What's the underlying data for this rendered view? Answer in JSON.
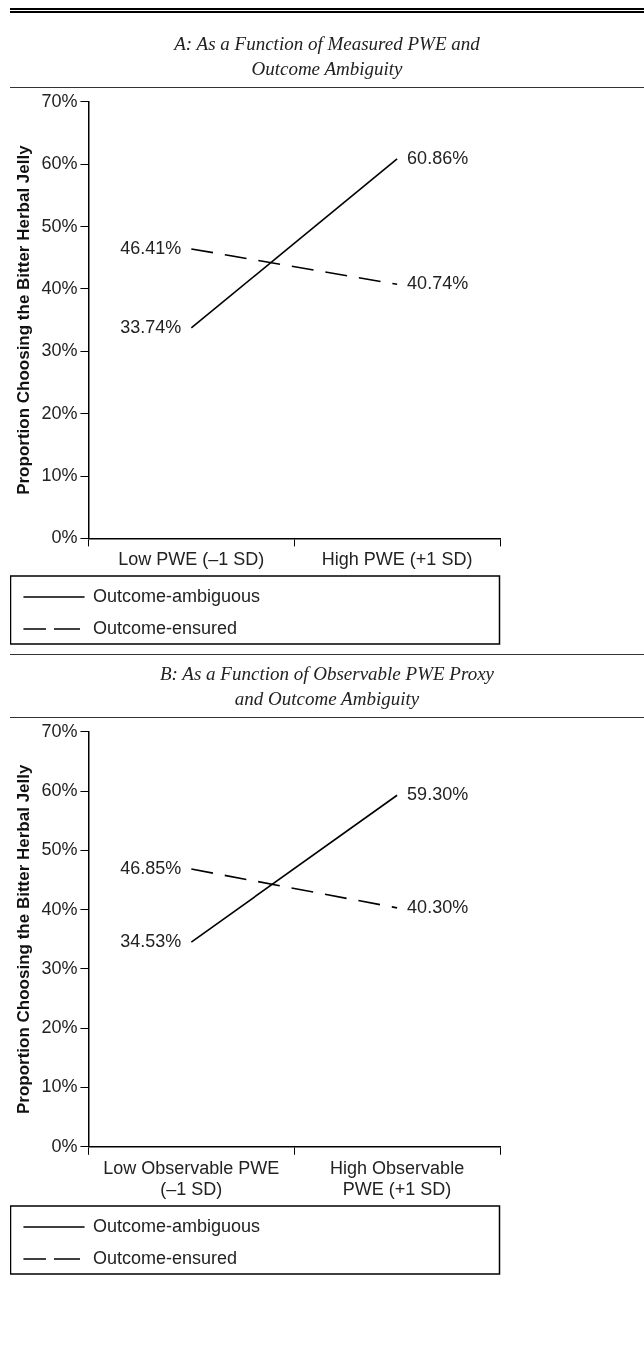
{
  "chart_data": [
    {
      "type": "line",
      "title": "A: As a Function of Measured PWE and Outcome Ambiguity",
      "ylabel": "Proportion Choosing the Bitter Herbal Jelly",
      "categories": [
        "Low PWE (–1 SD)",
        "High PWE (+1 SD)"
      ],
      "series": [
        {
          "name": "Outcome-ambiguous",
          "color": "#000000",
          "line_style": "solid",
          "values": [
            33.74,
            60.86
          ],
          "value_labels": [
            "33.74%",
            "60.86%"
          ]
        },
        {
          "name": "Outcome-ensured",
          "color": "#000000",
          "line_style": "dashed",
          "values": [
            46.41,
            40.74
          ],
          "value_labels": [
            "46.41%",
            "40.74%"
          ]
        }
      ],
      "ylim": [
        0,
        70
      ],
      "yticks": [
        {
          "value": 0,
          "label": "0%"
        },
        {
          "value": 10,
          "label": "10%"
        },
        {
          "value": 20,
          "label": "20%"
        },
        {
          "value": 30,
          "label": "30%"
        },
        {
          "value": 40,
          "label": "40%"
        },
        {
          "value": 50,
          "label": "50%"
        },
        {
          "value": 60,
          "label": "60%"
        },
        {
          "value": 70,
          "label": "70%"
        }
      ],
      "grid": false,
      "legend": "bottom",
      "marker": "none"
    },
    {
      "type": "line",
      "title": "B: As a Function of Observable PWE Proxy and Outcome Ambiguity",
      "ylabel": "Proportion Choosing the Bitter Herbal Jelly",
      "categories": [
        "Low Observable PWE (–1 SD)",
        "High Observable PWE (+1 SD)"
      ],
      "series": [
        {
          "name": "Outcome-ambiguous",
          "color": "#000000",
          "line_style": "solid",
          "values": [
            34.53,
            59.3
          ],
          "value_labels": [
            "34.53%",
            "59.30%"
          ]
        },
        {
          "name": "Outcome-ensured",
          "color": "#000000",
          "line_style": "dashed",
          "values": [
            46.85,
            40.3
          ],
          "value_labels": [
            "46.85%",
            "40.30%"
          ]
        }
      ],
      "ylim": [
        0,
        70
      ],
      "yticks": [
        {
          "value": 0,
          "label": "0%"
        },
        {
          "value": 10,
          "label": "10%"
        },
        {
          "value": 20,
          "label": "20%"
        },
        {
          "value": 30,
          "label": "30%"
        },
        {
          "value": 40,
          "label": "40%"
        },
        {
          "value": 50,
          "label": "50%"
        },
        {
          "value": 60,
          "label": "60%"
        },
        {
          "value": 70,
          "label": "70%"
        }
      ],
      "grid": false,
      "legend": "bottom",
      "marker": "none"
    }
  ]
}
